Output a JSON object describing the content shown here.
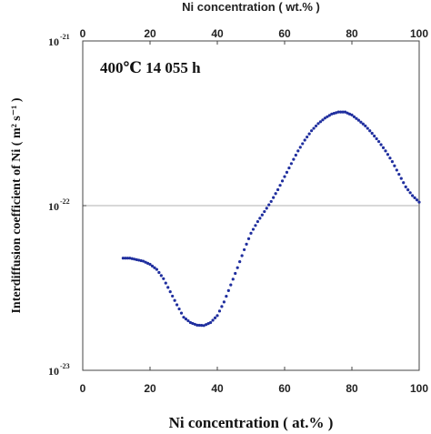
{
  "chart_data": {
    "type": "scatter",
    "title": "",
    "annotation": "400℃ 14 055 h",
    "xlabel": "Ni concentration ( at.% )",
    "xlabel_top": "Ni concentration ( wt.% )",
    "ylabel": "Interdiffusion coefficient of Ni ( m² s⁻¹ )",
    "xlim": [
      0,
      100
    ],
    "xlim_top": [
      0,
      100
    ],
    "ylim": [
      1e-23,
      1e-21
    ],
    "yscale": "log",
    "xticks": [
      "0",
      "20",
      "40",
      "60",
      "80",
      "100"
    ],
    "xticks_top": [
      "0",
      "20",
      "40",
      "60",
      "80",
      "100"
    ],
    "yticks": [
      {
        "base": "10",
        "exp": "-23",
        "value": 1e-23
      },
      {
        "base": "10",
        "exp": "-22",
        "value": 1e-22
      },
      {
        "base": "10",
        "exp": "-21",
        "value": 1e-21
      }
    ],
    "grid": "horizontal line at 1e-22",
    "marker_color": "#1f2e9e",
    "x": [
      12,
      14,
      16,
      18,
      20,
      22,
      24,
      26,
      28,
      30,
      32,
      34,
      36,
      38,
      40,
      42,
      44,
      46,
      48,
      50,
      52,
      54,
      56,
      58,
      60,
      62,
      64,
      66,
      68,
      70,
      72,
      74,
      76,
      78,
      80,
      82,
      84,
      86,
      88,
      90,
      92,
      94,
      96,
      98,
      100
    ],
    "y": [
      4.8e-23,
      4.8e-23,
      4.7e-23,
      4.6e-23,
      4.4e-23,
      4.1e-23,
      3.6e-23,
      3e-23,
      2.5e-23,
      2.1e-23,
      1.95e-23,
      1.88e-23,
      1.87e-23,
      1.95e-23,
      2.15e-23,
      2.6e-23,
      3.3e-23,
      4.2e-23,
      5.4e-23,
      6.8e-23,
      8e-23,
      9.2e-23,
      1.06e-22,
      1.25e-22,
      1.5e-22,
      1.8e-22,
      2.15e-22,
      2.5e-22,
      2.85e-22,
      3.15e-22,
      3.4e-22,
      3.6e-22,
      3.7e-22,
      3.7e-22,
      3.55e-22,
      3.3e-22,
      3.05e-22,
      2.75e-22,
      2.45e-22,
      2.15e-22,
      1.85e-22,
      1.55e-22,
      1.3e-22,
      1.15e-22,
      1.05e-22
    ]
  }
}
